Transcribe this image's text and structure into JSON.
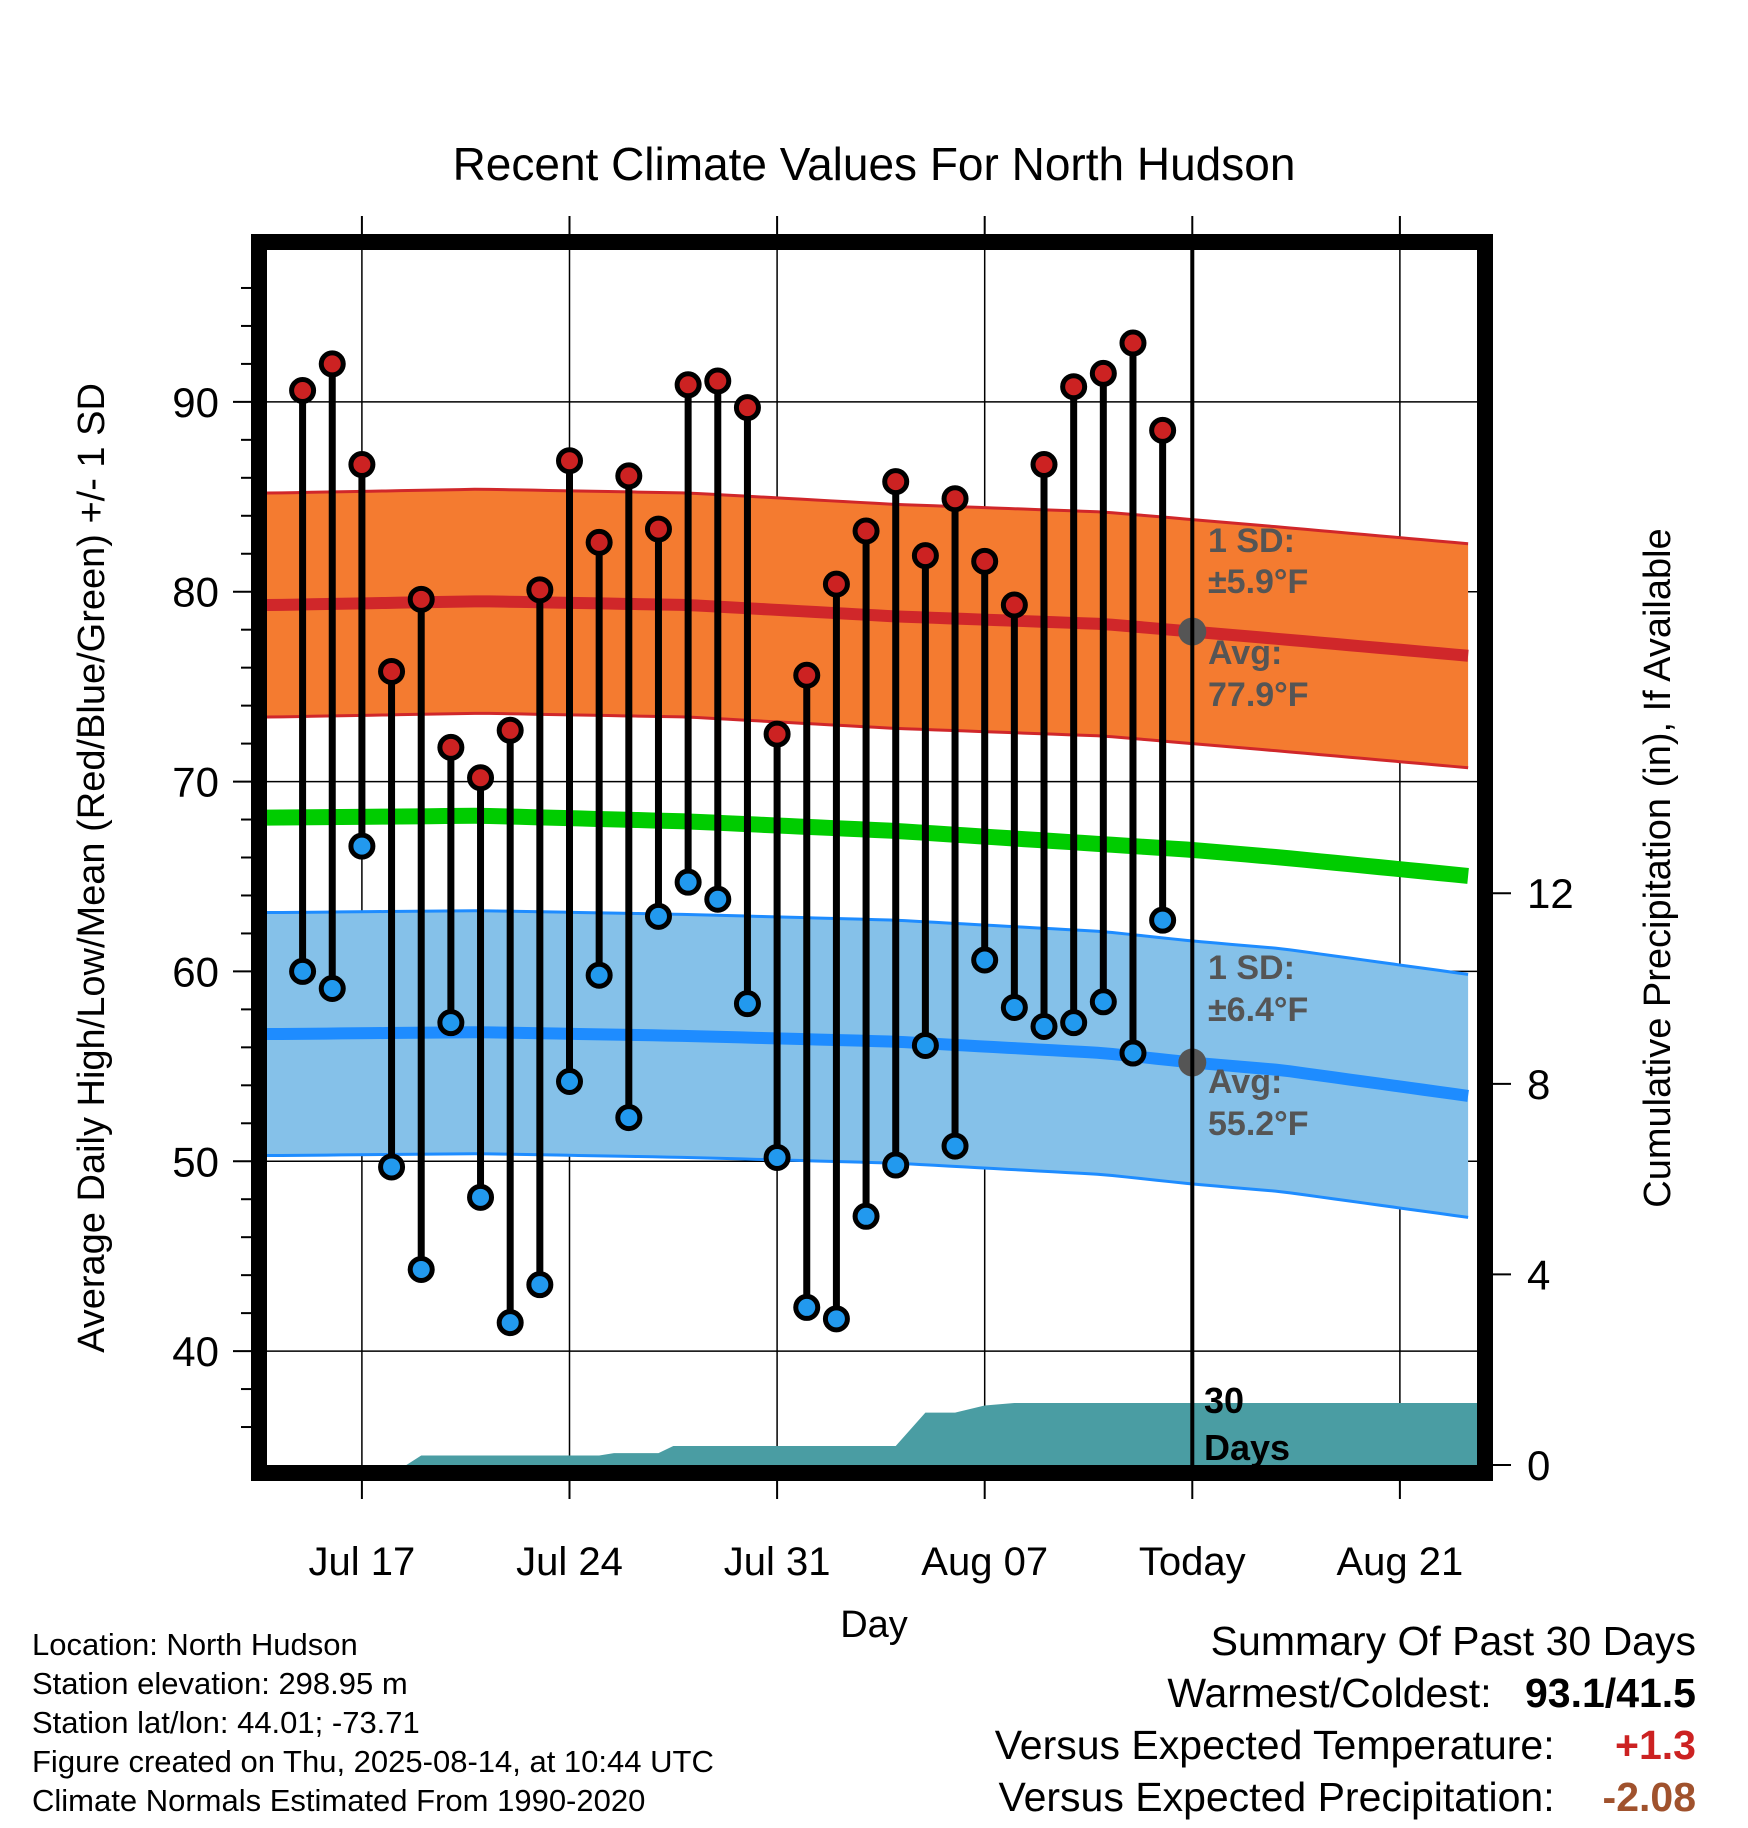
{
  "chart_data": {
    "type": "line",
    "title": "Recent Climate Values For North Hudson",
    "xlabel": "Day",
    "ylabel": "Average Daily High/Low/Mean (Red/Blue/Green) +/- 1 SD",
    "y2label": "Cumulative Precipitation (in), If Available",
    "x_tick_labels": [
      "Jul 17",
      "Jul 24",
      "Jul 31",
      "Aug 07",
      "Today",
      "Aug 21"
    ],
    "x_tick_days": [
      -28,
      -21,
      -14,
      -7,
      0,
      7
    ],
    "xlim_days": [
      -31.2,
      9.6
    ],
    "y_ticks": [
      40,
      50,
      60,
      70,
      80,
      90
    ],
    "ylim": [
      34,
      98
    ],
    "y2_ticks": [
      0,
      4,
      8,
      12
    ],
    "y2lim": [
      0,
      25.5
    ],
    "grid": true,
    "today_marker": "Today",
    "days": [
      -30,
      -29,
      -28,
      -27,
      -26,
      -25,
      -24,
      -23,
      -22,
      -21,
      -20,
      -19,
      -18,
      -17,
      -16,
      -15,
      -14,
      -13,
      -12,
      -11,
      -10,
      -9,
      -8,
      -7,
      -6,
      -5,
      -4,
      -3,
      -2,
      -1
    ],
    "daily_high": [
      90.6,
      92.0,
      86.7,
      75.8,
      79.6,
      71.8,
      70.2,
      72.7,
      80.1,
      86.9,
      82.6,
      86.1,
      83.3,
      90.9,
      91.1,
      89.7,
      72.5,
      75.6,
      80.4,
      83.2,
      85.8,
      81.9,
      84.9,
      81.6,
      79.3,
      86.7,
      90.8,
      91.5,
      93.1,
      88.5
    ],
    "daily_low": [
      60.0,
      59.1,
      66.6,
      49.7,
      44.3,
      57.3,
      48.1,
      41.5,
      43.5,
      54.2,
      59.8,
      52.3,
      62.9,
      64.7,
      63.8,
      58.3,
      50.2,
      42.3,
      41.7,
      47.1,
      49.8,
      56.1,
      50.8,
      60.6,
      58.1,
      57.1,
      57.3,
      58.4,
      55.7,
      62.7
    ],
    "normal_days": [
      -31,
      -24,
      -17,
      -10,
      -3,
      0,
      3,
      9.5
    ],
    "normal_high": [
      79.3,
      79.5,
      79.3,
      78.7,
      78.3,
      77.9,
      77.5,
      76.6
    ],
    "normal_high_sd": 5.9,
    "normal_low": [
      56.7,
      56.8,
      56.6,
      56.3,
      55.7,
      55.2,
      54.8,
      53.4
    ],
    "normal_low_sd": 6.4,
    "normal_mean": [
      68.1,
      68.2,
      67.9,
      67.4,
      66.7,
      66.4,
      66.0,
      65.0
    ],
    "precip_days": [
      -26.5,
      -26,
      -20,
      -19.5,
      -18,
      -17.5,
      -10,
      -9,
      -8,
      -7,
      -6,
      -5,
      9.6
    ],
    "precip_cumulative": [
      0.0,
      0.2,
      0.2,
      0.25,
      0.25,
      0.4,
      0.4,
      1.1,
      1.1,
      1.25,
      1.3,
      1.3,
      1.3
    ],
    "annotations": {
      "high_sd_label": "1 SD:",
      "high_sd_value": "±5.9°F",
      "high_avg_label": "Avg:",
      "high_avg_value": "77.9°F",
      "low_sd_label": "1 SD:",
      "low_sd_value": "±6.4°F",
      "low_avg_label": "Avg:",
      "low_avg_value": "55.2°F",
      "precip_period_line1": "30",
      "precip_period_line2": "Days"
    },
    "colors": {
      "high_band": "#f47b30",
      "high_line": "#d0272a",
      "low_band": "#85c1e9",
      "low_line": "#1e8cff",
      "mean_line": "#00cc00",
      "precip": "#4a9da3",
      "high_dot": "#cc2222",
      "low_dot": "#2299ee",
      "annotation": "#555555"
    }
  },
  "footer": {
    "location": "Location: North Hudson",
    "elevation": "Station elevation: 298.95 m",
    "latlon": "Station lat/lon: 44.01; -73.71",
    "created": "Figure created on Thu, 2025-08-14, at 10:44 UTC",
    "normals": "Climate Normals Estimated From 1990-2020"
  },
  "summary": {
    "title": "Summary Of Past 30 Days",
    "warmest_label": "Warmest/Coldest:",
    "warmest_value": "93.1/41.5",
    "temp_label": "Versus Expected Temperature:",
    "temp_value": "+1.3",
    "temp_color": "#cc2222",
    "precip_label": "Versus Expected Precipitation:",
    "precip_value": "-2.08",
    "precip_color": "#a0522d"
  }
}
